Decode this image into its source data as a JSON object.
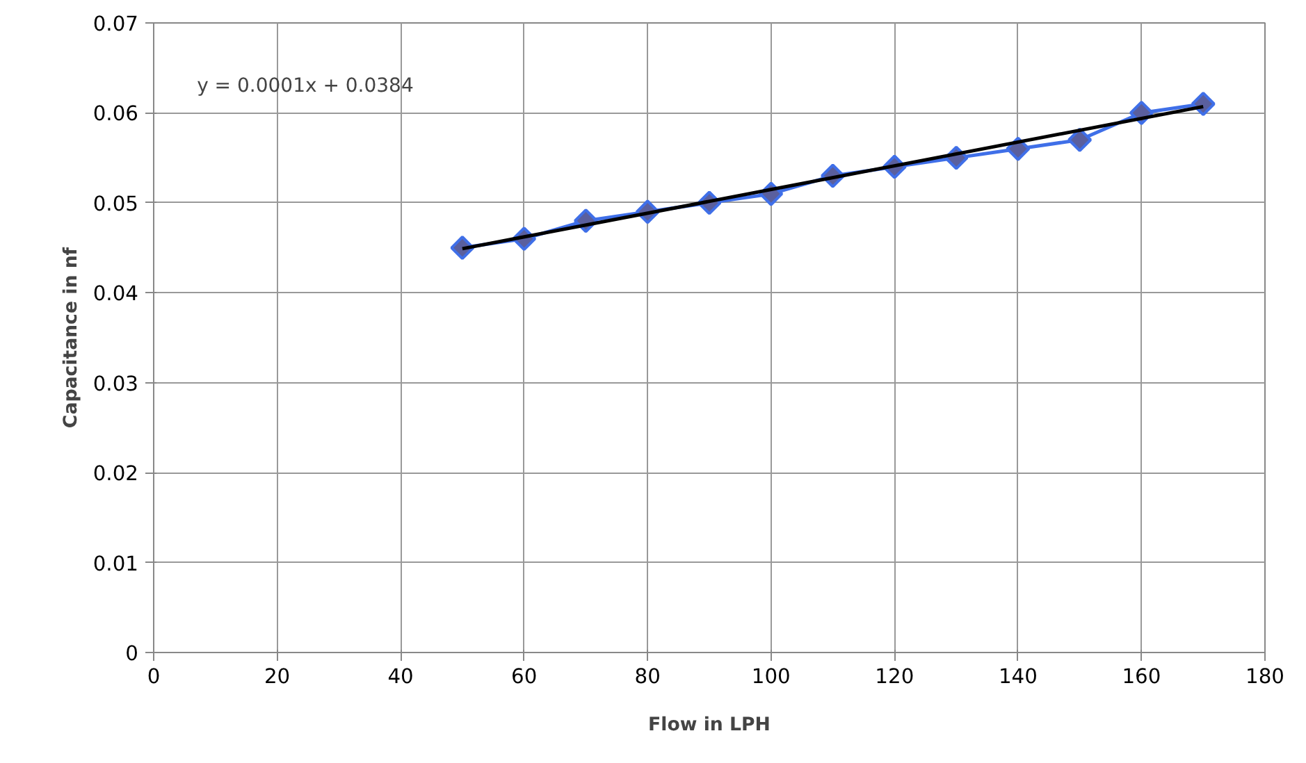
{
  "chart_data": {
    "type": "line",
    "xlabel": "Flow in LPH",
    "ylabel": "Capacitance in nf",
    "x": [
      50,
      60,
      70,
      80,
      90,
      100,
      110,
      120,
      130,
      140,
      150,
      160,
      170
    ],
    "series": [
      {
        "color": "#3f6fe8",
        "marker": "diamond",
        "values": [
          0.045,
          0.046,
          0.048,
          0.049,
          0.05,
          0.051,
          0.053,
          0.054,
          0.055,
          0.056,
          0.057,
          0.06,
          0.061
        ]
      },
      {
        "type": "line",
        "color": "#000000",
        "marker": "none",
        "x": [
          50,
          170
        ],
        "values": [
          0.0449,
          0.0607
        ]
      }
    ],
    "xlim": [
      0,
      180
    ],
    "ylim": [
      0,
      0.07
    ],
    "xticks": [
      0,
      20,
      40,
      60,
      80,
      100,
      120,
      140,
      160,
      180
    ],
    "yticks": [
      0,
      {
        "value": 0.01,
        "label": "0.01"
      },
      {
        "value": 0.02,
        "label": "0.02"
      },
      {
        "value": 0.03,
        "label": "0.03"
      },
      {
        "value": 0.04,
        "label": "0.04"
      },
      {
        "value": 0.05,
        "label": "0.05"
      },
      {
        "value": 0.06,
        "label": "0.06"
      },
      {
        "value": 0.07,
        "label": "0.07"
      }
    ],
    "annotations": [
      "y = 0.0001x + 0.0384"
    ],
    "grid": true,
    "line_style": "solid"
  }
}
